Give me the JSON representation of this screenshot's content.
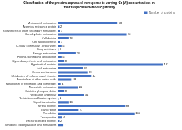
{
  "chart_data": {
    "type": "bar",
    "orientation": "horizontal",
    "title": "Classification  of the proteins expressed in response to varying  Cr (VI) concentrations in\n their respective metabolic pathway",
    "categories": [
      "Amino acid metabolism",
      "Arsenical resistance protein",
      "Biosynthesis of other secondary metabolites",
      "Carbohydrate metabolism",
      "Cell division",
      "Cell wall biogenesis",
      "Cellular community - prokaryotes",
      "Drug resistance",
      "Energy metabolism",
      "Folding, sorting and degradation",
      "Glycan biosynthesis and metabolism",
      "Hypothetical proteins",
      "Lipid metabolism",
      "Membrane transport",
      "Metabolism of cofactors and vitamins",
      "Metabolism of other amino acids",
      "Metabolism of terpenoids and polyketides",
      "Nucleotide metabolism",
      "Oxidative phosphorylation",
      "Replication and repair",
      "Restriction modification system",
      "Signal transduction",
      "Stress proteins",
      "Transcription",
      "Translation",
      "Transposition",
      "Uncharacterized proteins",
      "Xenobiotic biodegradation and metabolism"
    ],
    "series": [
      {
        "name": "Number of proteins",
        "color": "#4472C4",
        "values": [
          78,
          2,
          3,
          90,
          14,
          3,
          5,
          1,
          23,
          5,
          8,
          137,
          33,
          39,
          44,
          18,
          4,
          26,
          8,
          34,
          1,
          14,
          88,
          27,
          100,
          6,
          2,
          7
        ]
      }
    ],
    "xlim": [
      0,
      155
    ],
    "tick_labels": "y",
    "data_labels": true,
    "legend": "upper right",
    "grid": false
  }
}
